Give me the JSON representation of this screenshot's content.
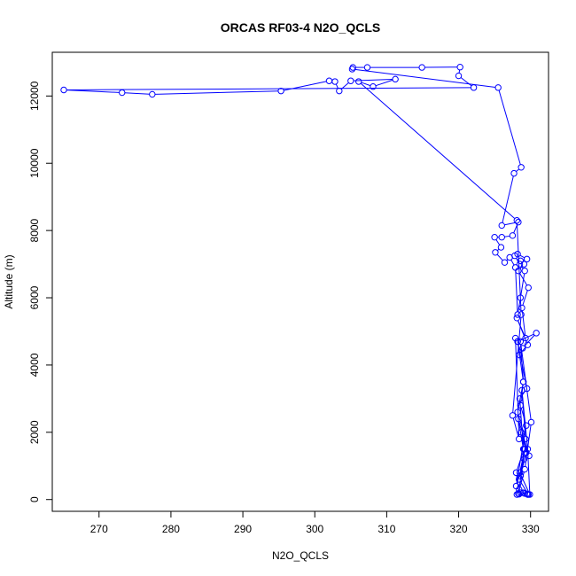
{
  "chart_data": {
    "type": "line",
    "title": "ORCAS RF03-4 N2O_QCLS",
    "xlabel": "N2O_QCLS",
    "ylabel": "Altitude (m)",
    "xlim": [
      263.5,
      332.5
    ],
    "ylim": [
      -350,
      13300
    ],
    "xticks": [
      270,
      280,
      290,
      300,
      310,
      320,
      330
    ],
    "yticks": [
      0,
      2000,
      4000,
      6000,
      8000,
      10000,
      12000
    ],
    "grid": false,
    "color": "#0000ff",
    "series": [
      {
        "marker": "open-circle",
        "x": [
          329.6,
          329.2,
          328.4,
          328.0,
          329.1,
          328.6,
          329.4,
          328.7,
          329.8,
          328.3,
          329.0,
          328.5,
          329.5,
          328.2,
          330.8,
          328.9,
          328.4,
          329.6,
          328.1,
          329.3,
          328.8,
          329.7,
          328.3,
          329.1,
          328.6,
          329.5,
          328.2,
          327.8,
          328.5,
          329.2,
          328.6,
          328.2,
          327.9,
          327.1,
          326.4,
          325.1,
          325.9,
          325.0,
          326.0,
          327.5,
          328.3,
          326.0,
          327.7,
          328.7,
          325.5,
          305.2,
          305.3,
          307.3,
          314.9,
          320.2,
          320.0,
          322.1,
          265.1,
          273.2,
          277.4,
          295.3,
          302.0,
          302.8,
          303.4,
          305.0,
          311.2,
          308.1,
          306.1,
          328.1,
          328.7,
          327.5,
          328.4,
          327.9,
          328.2,
          329.0,
          328.6,
          329.4,
          328.0,
          329.1,
          328.4,
          329.7,
          328.3,
          329.2,
          330.1,
          328.6,
          329.0,
          328.2,
          329.3,
          328.8,
          329.6,
          329.9,
          328.5,
          329.2,
          328.4,
          329.0,
          328.1,
          329.5,
          328.6
        ],
        "y": [
          150,
          180,
          160,
          800,
          1500,
          700,
          1400,
          2000,
          1300,
          2400,
          1500,
          3000,
          3300,
          4700,
          4950,
          4500,
          4300,
          4600,
          5400,
          4800,
          5700,
          6300,
          6800,
          7000,
          7100,
          7150,
          7300,
          7250,
          7000,
          6800,
          6000,
          5500,
          6900,
          7200,
          7050,
          7350,
          7500,
          7800,
          7800,
          7850,
          8250,
          8150,
          9700,
          9880,
          12250,
          12800,
          12850,
          12850,
          12850,
          12860,
          12600,
          12250,
          12180,
          12100,
          12050,
          12150,
          12450,
          12430,
          12150,
          12450,
          12500,
          12280,
          12430,
          8300,
          5500,
          2500,
          1800,
          4800,
          4700,
          3500,
          2800,
          2200,
          400,
          1200,
          600,
          150,
          180,
          900,
          2300,
          4700,
          3500,
          2600,
          1800,
          3250,
          1500,
          150,
          800,
          1500,
          300,
          200,
          150,
          170,
          200
        ]
      }
    ]
  }
}
